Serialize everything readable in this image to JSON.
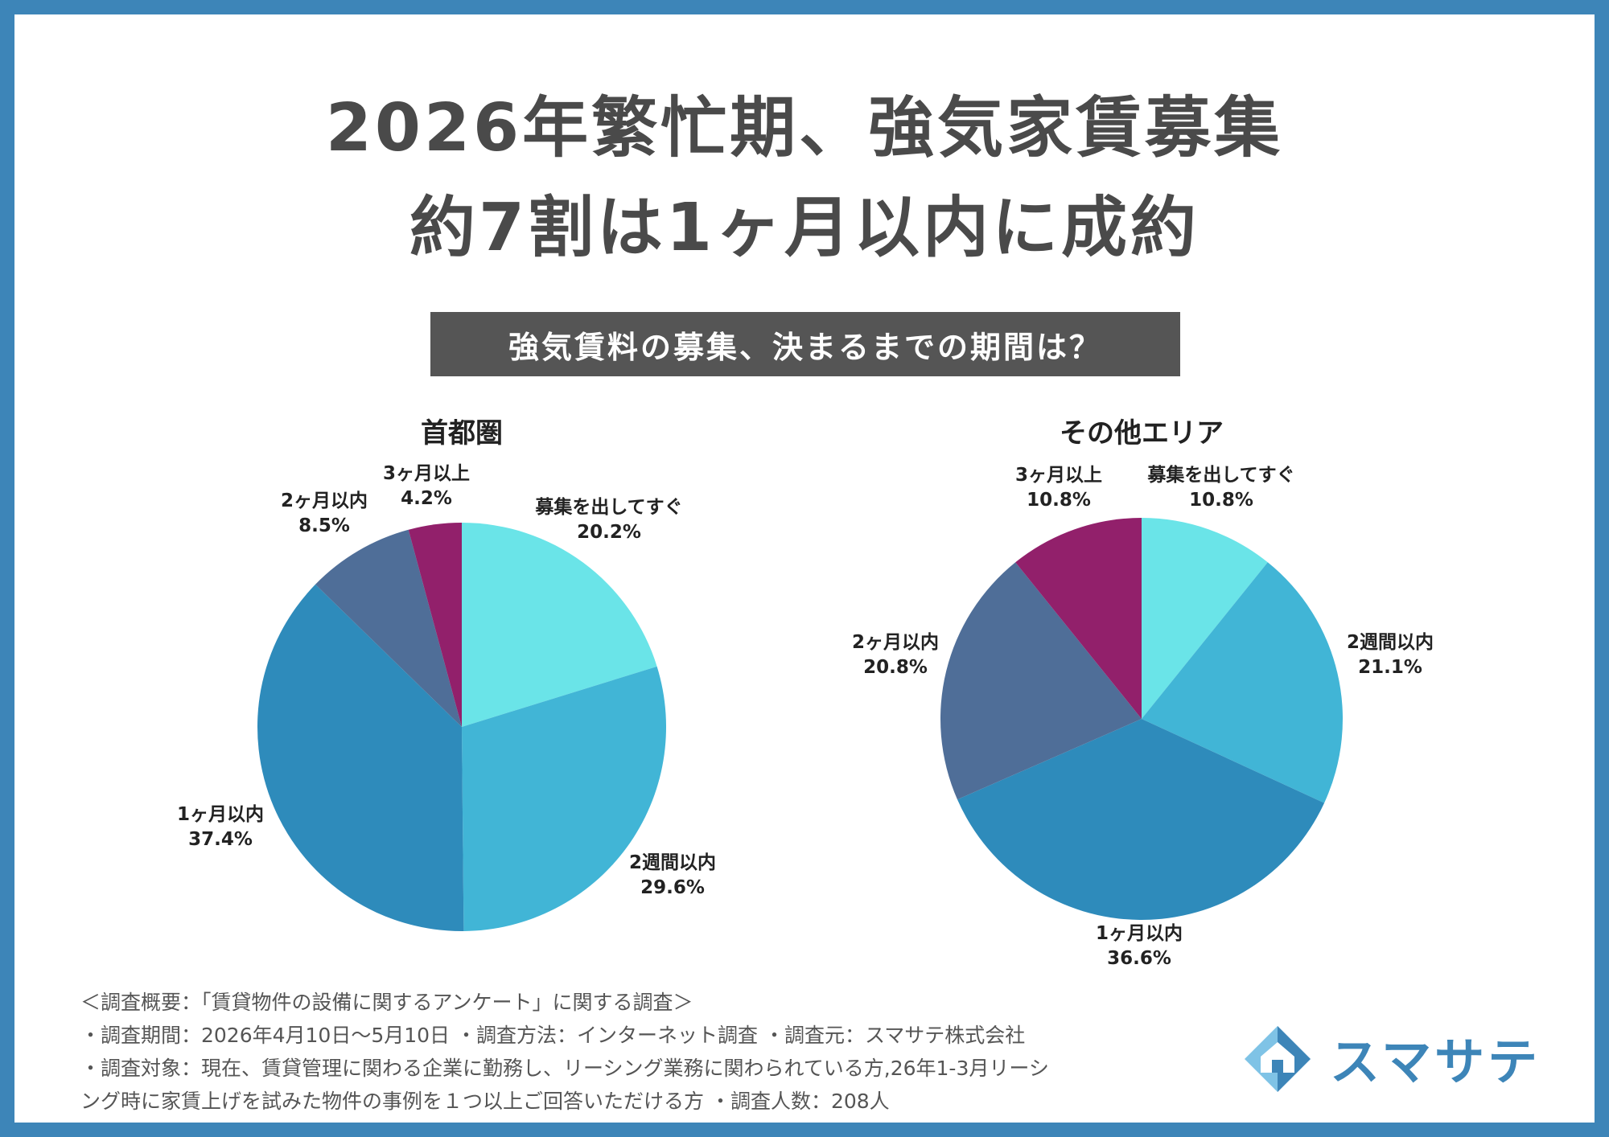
{
  "header": {
    "title_line1": "2026年繁忙期、強気家賃募集",
    "title_line2": "約7割は1ヶ月以内に成約",
    "banner": "強気賃料の募集、決まるまでの期間は？"
  },
  "colors": {
    "frame": "#3d85b8",
    "banner_bg": "#555555",
    "slice_immediate": "#6ae4e8",
    "slice_2weeks": "#41b5d6",
    "slice_1month": "#2e8bbb",
    "slice_2months": "#4f6e98",
    "slice_3months": "#92206b"
  },
  "chart_data": [
    {
      "type": "pie",
      "title": "首都圏",
      "slices": [
        {
          "label": "募集を出してすぐ",
          "value": 20.2,
          "value_label": "20.2%",
          "color": "#6ae4e8"
        },
        {
          "label": "2週間以内",
          "value": 29.6,
          "value_label": "29.6%",
          "color": "#41b5d6"
        },
        {
          "label": "1ヶ月以内",
          "value": 37.4,
          "value_label": "37.4%",
          "color": "#2e8bbb"
        },
        {
          "label": "2ヶ月以内",
          "value": 8.5,
          "value_label": "8.5%",
          "color": "#4f6e98"
        },
        {
          "label": "3ヶ月以上",
          "value": 4.2,
          "value_label": "4.2%",
          "color": "#92206b"
        }
      ]
    },
    {
      "type": "pie",
      "title": "その他エリア",
      "slices": [
        {
          "label": "募集を出してすぐ",
          "value": 10.8,
          "value_label": "10.8%",
          "color": "#6ae4e8"
        },
        {
          "label": "2週間以内",
          "value": 21.1,
          "value_label": "21.1%",
          "color": "#41b5d6"
        },
        {
          "label": "1ヶ月以内",
          "value": 36.6,
          "value_label": "36.6%",
          "color": "#2e8bbb"
        },
        {
          "label": "2ヶ月以内",
          "value": 20.8,
          "value_label": "20.8%",
          "color": "#4f6e98"
        },
        {
          "label": "3ヶ月以上",
          "value": 10.8,
          "value_label": "10.8%",
          "color": "#92206b"
        }
      ]
    }
  ],
  "footer": {
    "line1": "＜調査概要：「賃貸物件の設備に関するアンケート」に関する調査＞",
    "line2": "・調査期間：2026年4月10日～5月10日 ・調査方法：インターネット調査 ・調査元：スマサテ株式会社",
    "line3": "・調査対象：現在、賃貸管理に関わる企業に勤務し、リーシング業務に関わられている方,26年1-3月リーシ",
    "line4": "ング時に家賃上げを試みた物件の事例を１つ以上ご回答いただける方 ・調査人数：208人"
  },
  "logo": {
    "text": "スマサテ",
    "icon": "house-diamond-icon"
  }
}
